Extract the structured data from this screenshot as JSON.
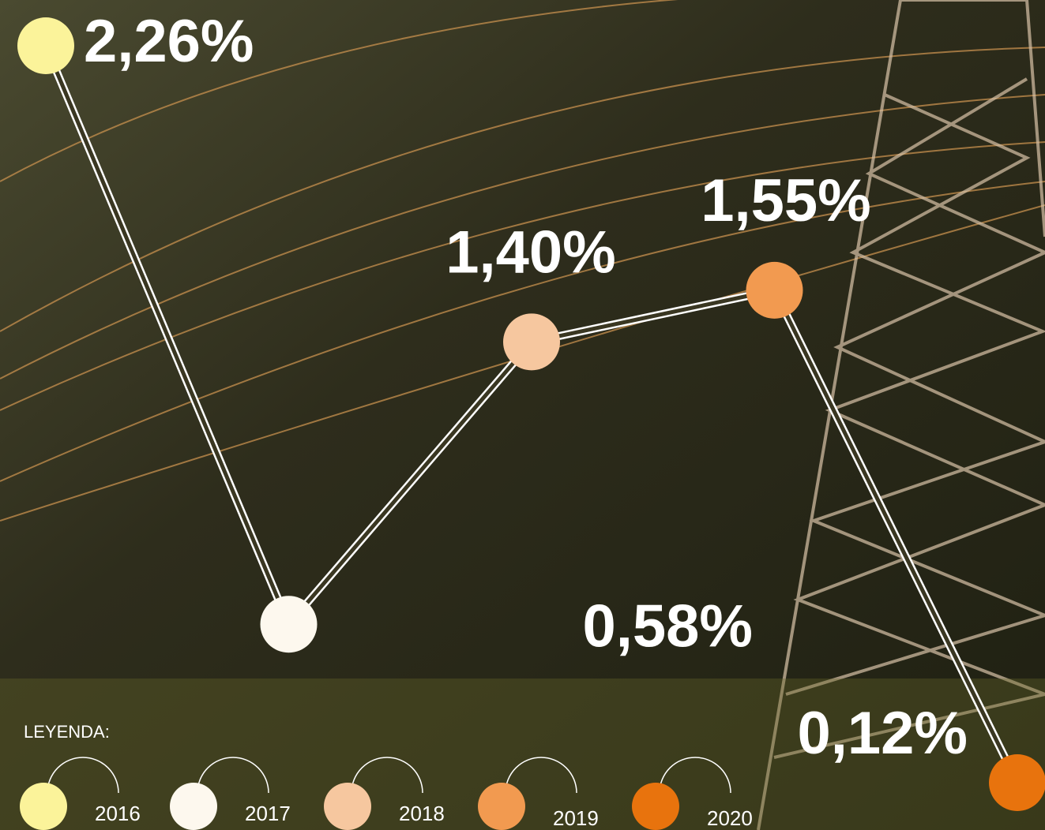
{
  "chart_data": {
    "type": "line",
    "categories": [
      "2016",
      "2017",
      "2018",
      "2019",
      "2020"
    ],
    "values": [
      2.26,
      0.58,
      1.4,
      1.55,
      0.12
    ],
    "value_labels": [
      "2,26%",
      "0,58%",
      "1,40%",
      "1,55%",
      "0,12%"
    ],
    "colors": [
      "#fbf39a",
      "#fdf8ee",
      "#f6c79f",
      "#f29a50",
      "#e8730d"
    ],
    "legend_title": "LEYENDA:"
  }
}
